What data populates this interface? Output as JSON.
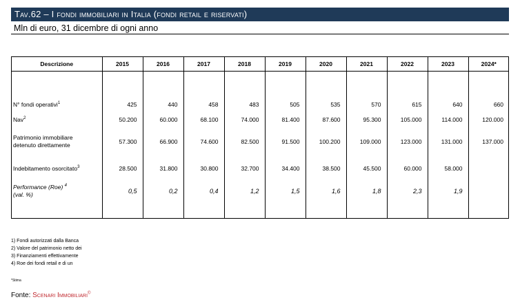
{
  "title": "Tav.62 – I fondi immobiliari in Italia (fondi retail e riservati)",
  "subtitle": "Mln di euro, 31 dicembre di ogni anno",
  "table": {
    "header_desc": "Descrizione",
    "years": [
      "2015",
      "2016",
      "2017",
      "2018",
      "2019",
      "2020",
      "2021",
      "2022",
      "2023",
      "2024*"
    ],
    "rows": [
      {
        "label": "N° fondi operativi",
        "sup": "1",
        "values": [
          "425",
          "440",
          "458",
          "483",
          "505",
          "535",
          "570",
          "615",
          "640",
          "660"
        ]
      },
      {
        "label": "Nav",
        "sup": "2",
        "values": [
          "50.200",
          "60.000",
          "68.100",
          "74.000",
          "81.400",
          "87.600",
          "95.300",
          "105.000",
          "114.000",
          "120.000"
        ]
      },
      {
        "label_line1": "Patrimonio immobiliare",
        "label_line2": "detenuto direttamente",
        "values": [
          "57.300",
          "66.900",
          "74.600",
          "82.500",
          "91.500",
          "100.200",
          "109.000",
          "123.000",
          "131.000",
          "137.000"
        ]
      },
      {
        "label": "Indebitamento osorcitato",
        "sup": "3",
        "values": [
          "28.500",
          "31.800",
          "30.800",
          "32.700",
          "34.400",
          "38.500",
          "45.500",
          "60.000",
          "58.000",
          ""
        ]
      },
      {
        "label_line1": "Performance (Roe)",
        "sup": "4",
        "label_line2": "(val. %)",
        "values": [
          "0,5",
          "0,2",
          "0,4",
          "1,2",
          "1,5",
          "1,6",
          "1,8",
          "2,3",
          "1,9",
          ""
        ]
      }
    ]
  },
  "notes": [
    "1) Fondi autorizzati dalla Banca",
    "2) Valore del patrimonio netto dei",
    "3) Finanziamenti effettivamente",
    "4) Roe dei fondi retail e di un"
  ],
  "stima": "*Stima",
  "source": {
    "label": "Fonte: ",
    "brand": "Scenari Immobiliari",
    "mark": "©"
  }
}
